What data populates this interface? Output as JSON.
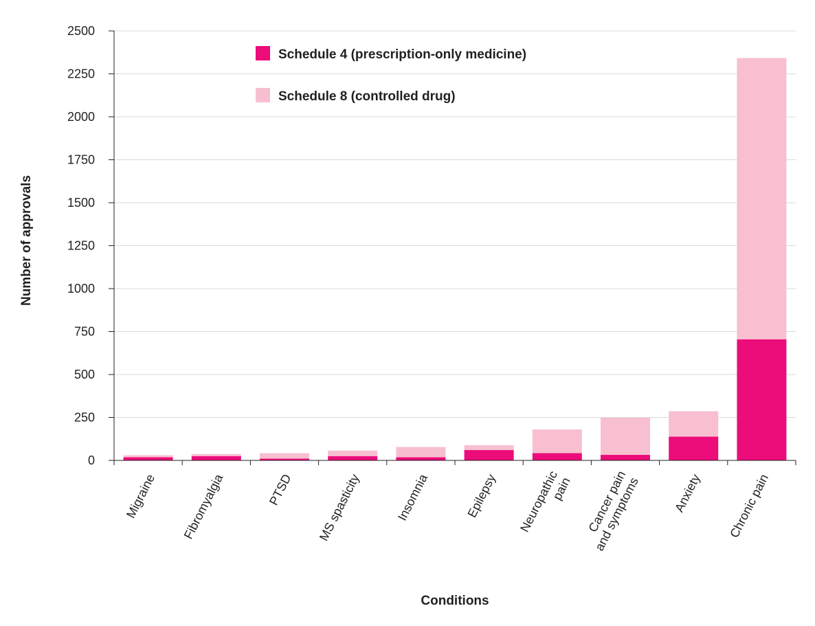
{
  "chart_data": {
    "type": "bar",
    "stacked": true,
    "categories": [
      [
        "Migraine"
      ],
      [
        "Fibromyalgia"
      ],
      [
        "PTSD"
      ],
      [
        "MS spasticity"
      ],
      [
        "Insomnia"
      ],
      [
        "Epilepsy"
      ],
      [
        "Neuropathic",
        "pain"
      ],
      [
        "Cancer pain",
        "and symptoms"
      ],
      [
        "Anxiety"
      ],
      [
        "Chronic pain"
      ]
    ],
    "series": [
      {
        "name": "Schedule 4 (prescription-only medicine)",
        "color": "#ec0c7a",
        "values": [
          18,
          25,
          10,
          25,
          18,
          60,
          42,
          32,
          138,
          705
        ]
      },
      {
        "name": "Schedule 8 (controlled drug)",
        "color": "#f7bfcf",
        "values": [
          12,
          12,
          32,
          32,
          60,
          28,
          138,
          216,
          148,
          1637
        ]
      }
    ],
    "title": "",
    "xlabel": "Conditions",
    "ylabel": "Number of approvals",
    "ylim": [
      0,
      2500
    ],
    "yticks": [
      "0",
      "250",
      "500",
      "750",
      "1000",
      "1250",
      "1500",
      "1750",
      "2000",
      "2250",
      "2500"
    ],
    "grid": true,
    "legend_position": "top-center"
  }
}
